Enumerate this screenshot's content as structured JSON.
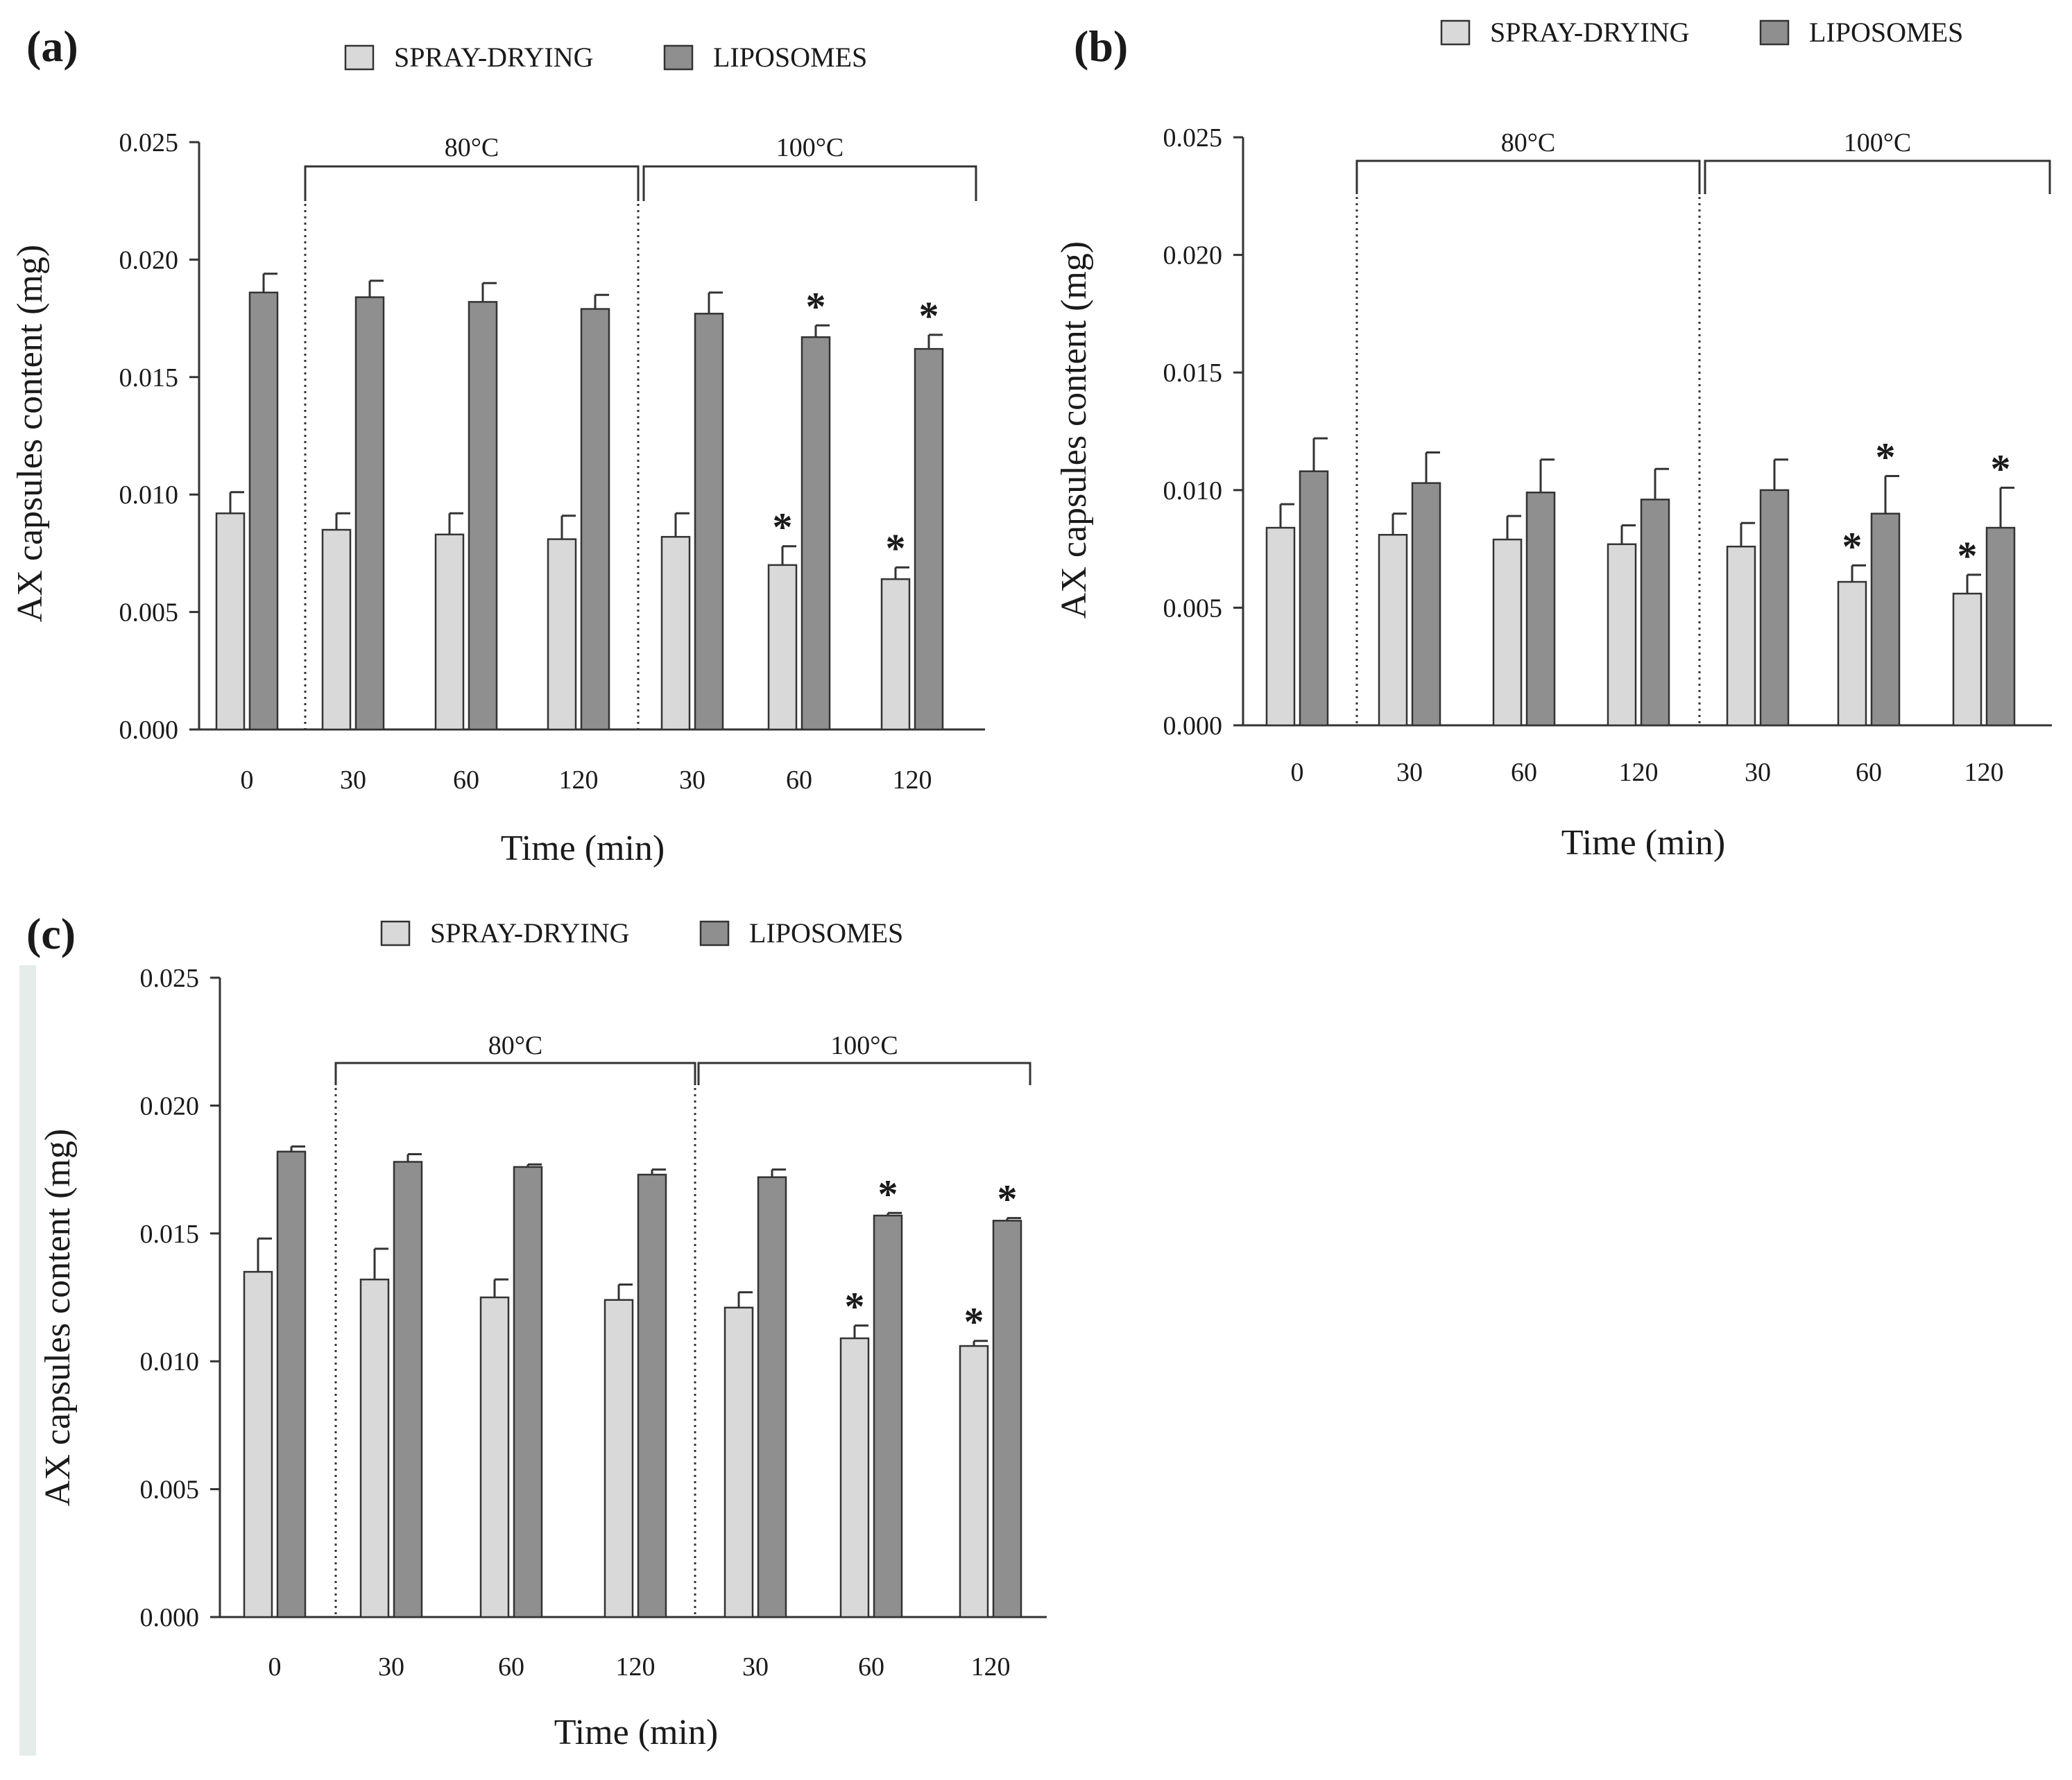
{
  "colors": {
    "spray": "#d9d9d9",
    "lipo": "#8f8f8f",
    "axis": "#333333"
  },
  "chart_data": [
    {
      "panel": "(a)",
      "type": "bar",
      "legend": [
        "SPRAY-DRYING",
        "LIPOSOMES"
      ],
      "categories": [
        "0",
        "30",
        "60",
        "120",
        "30",
        "60",
        "120"
      ],
      "groups": [
        {
          "label": "80°C",
          "indices": [
            1,
            3
          ]
        },
        {
          "label": "100°C",
          "indices": [
            4,
            6
          ]
        }
      ],
      "xlabel": "Time (min)",
      "ylabel": "AX capsules content (mg)",
      "ylim": [
        0,
        0.025
      ],
      "yticks": [
        "0.000",
        "0.005",
        "0.010",
        "0.015",
        "0.020",
        "0.025"
      ],
      "series": [
        {
          "name": "SPRAY-DRYING",
          "values": [
            0.0092,
            0.0085,
            0.0083,
            0.0081,
            0.0082,
            0.007,
            0.0064
          ],
          "errors": [
            0.0009,
            0.0007,
            0.0009,
            0.001,
            0.001,
            0.0008,
            0.0005
          ],
          "significant": [
            false,
            false,
            false,
            false,
            false,
            true,
            true
          ]
        },
        {
          "name": "LIPOSOMES",
          "values": [
            0.0186,
            0.0184,
            0.0182,
            0.0179,
            0.0177,
            0.0167,
            0.0162
          ],
          "errors": [
            0.0008,
            0.0007,
            0.0008,
            0.0006,
            0.0009,
            0.0005,
            0.0006
          ],
          "significant": [
            false,
            false,
            false,
            false,
            false,
            true,
            true
          ]
        }
      ],
      "star_symbol": "*"
    },
    {
      "panel": "(b)",
      "type": "bar",
      "legend": [
        "SPRAY-DRYING",
        "LIPOSOMES"
      ],
      "categories": [
        "0",
        "30",
        "60",
        "120",
        "30",
        "60",
        "120"
      ],
      "groups": [
        {
          "label": "80°C",
          "indices": [
            1,
            3
          ]
        },
        {
          "label": "100°C",
          "indices": [
            4,
            6
          ]
        }
      ],
      "xlabel": "Time (min)",
      "ylabel": "AX capsules content (mg)",
      "ylim": [
        0,
        0.025
      ],
      "yticks": [
        "0.000",
        "0.005",
        "0.010",
        "0.015",
        "0.020",
        "0.025"
      ],
      "series": [
        {
          "name": "SPRAY-DRYING",
          "values": [
            0.0084,
            0.0081,
            0.0079,
            0.0077,
            0.0076,
            0.0061,
            0.0056
          ],
          "errors": [
            0.001,
            0.0009,
            0.001,
            0.0008,
            0.001,
            0.0007,
            0.0008
          ],
          "significant": [
            false,
            false,
            false,
            false,
            false,
            true,
            true
          ]
        },
        {
          "name": "LIPOSOMES",
          "values": [
            0.0108,
            0.0103,
            0.0099,
            0.0096,
            0.01,
            0.009,
            0.0084
          ],
          "errors": [
            0.0014,
            0.0013,
            0.0014,
            0.0013,
            0.0013,
            0.0016,
            0.0017
          ],
          "significant": [
            false,
            false,
            false,
            false,
            false,
            true,
            true
          ]
        }
      ],
      "star_symbol": "*"
    },
    {
      "panel": "(c)",
      "type": "bar",
      "legend": [
        "SPRAY-DRYING",
        "LIPOSOMES"
      ],
      "categories": [
        "0",
        "30",
        "60",
        "120",
        "30",
        "60",
        "120"
      ],
      "groups": [
        {
          "label": "80°C",
          "indices": [
            1,
            3
          ]
        },
        {
          "label": "100°C",
          "indices": [
            4,
            6
          ]
        }
      ],
      "xlabel": "Time (min)",
      "ylabel": "AX capsules content (mg)",
      "ylim": [
        0,
        0.025
      ],
      "yticks": [
        "0.000",
        "0.005",
        "0.010",
        "0.015",
        "0.020",
        "0.025"
      ],
      "series": [
        {
          "name": "SPRAY-DRYING",
          "values": [
            0.0135,
            0.0132,
            0.0125,
            0.0124,
            0.0121,
            0.0109,
            0.0106
          ],
          "errors": [
            0.0013,
            0.0012,
            0.0007,
            0.0006,
            0.0006,
            0.0005,
            0.0002
          ],
          "significant": [
            false,
            false,
            false,
            false,
            false,
            true,
            true
          ]
        },
        {
          "name": "LIPOSOMES",
          "values": [
            0.0182,
            0.0178,
            0.0176,
            0.0173,
            0.0172,
            0.0157,
            0.0155
          ],
          "errors": [
            0.0002,
            0.0003,
            0.0001,
            0.0002,
            0.0003,
            0.0001,
            0.0001
          ],
          "significant": [
            false,
            false,
            false,
            false,
            false,
            true,
            true
          ]
        }
      ],
      "star_symbol": "*"
    }
  ]
}
